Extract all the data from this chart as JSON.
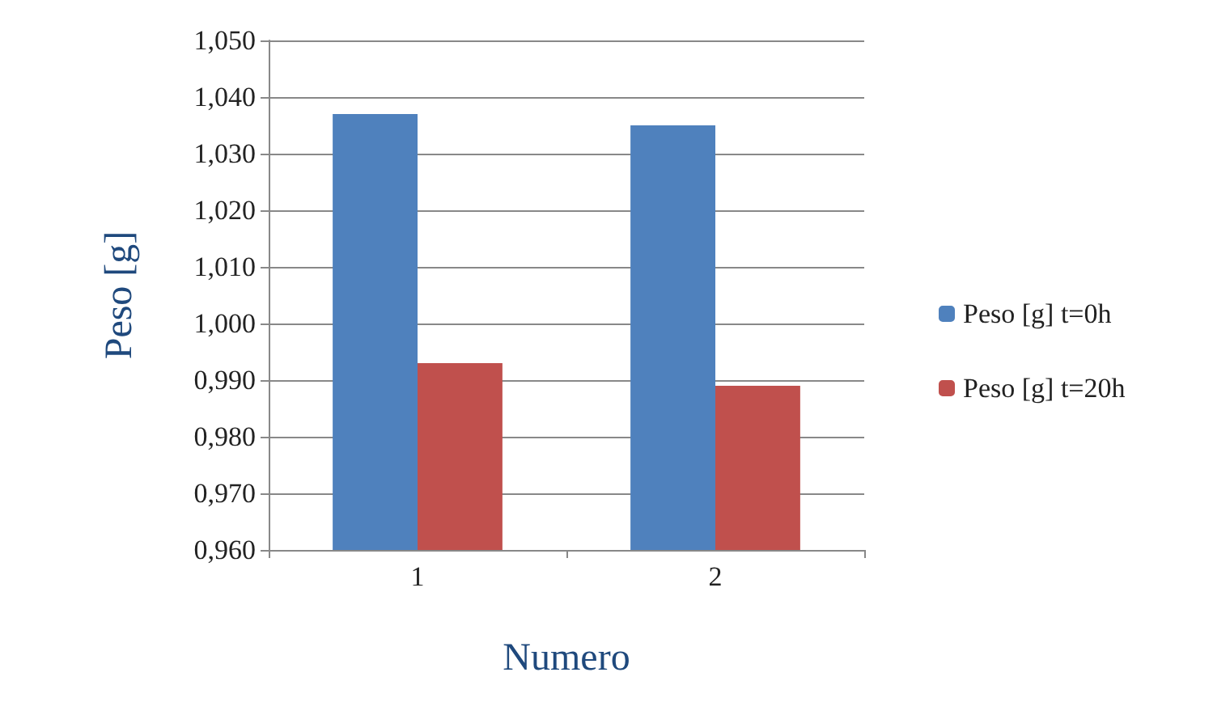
{
  "chart_data": {
    "type": "bar",
    "xlabel": "Numero",
    "ylabel": "Peso [g]",
    "categories": [
      "1",
      "2"
    ],
    "series": [
      {
        "name": "Peso [g] t=0h",
        "color": "#4f81bd",
        "values": [
          1.037,
          1.035
        ]
      },
      {
        "name": "Peso [g] t=20h",
        "color": "#c0504d",
        "values": [
          0.993,
          0.989
        ]
      }
    ],
    "ylim": [
      0.96,
      1.05
    ],
    "yticks": [
      {
        "value": 0.96,
        "label": "0,960"
      },
      {
        "value": 0.97,
        "label": "0,970"
      },
      {
        "value": 0.98,
        "label": "0,980"
      },
      {
        "value": 0.99,
        "label": "0,990"
      },
      {
        "value": 1.0,
        "label": "1,000"
      },
      {
        "value": 1.01,
        "label": "1,010"
      },
      {
        "value": 1.02,
        "label": "1,020"
      },
      {
        "value": 1.03,
        "label": "1,030"
      },
      {
        "value": 1.04,
        "label": "1,040"
      },
      {
        "value": 1.05,
        "label": "1,050"
      }
    ],
    "grid": "y",
    "legend": "right"
  }
}
